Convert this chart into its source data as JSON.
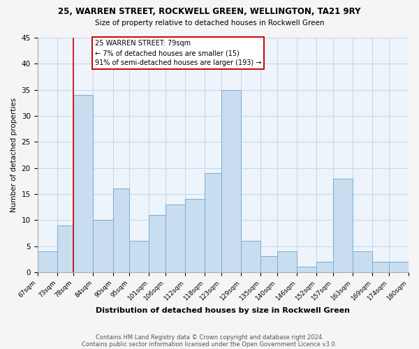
{
  "title1": "25, WARREN STREET, ROCKWELL GREEN, WELLINGTON, TA21 9RY",
  "title2": "Size of property relative to detached houses in Rockwell Green",
  "xlabel": "Distribution of detached houses by size in Rockwell Green",
  "ylabel": "Number of detached properties",
  "bin_edges": [
    67,
    73,
    78,
    84,
    90,
    95,
    101,
    106,
    112,
    118,
    123,
    129,
    135,
    140,
    146,
    152,
    157,
    163,
    169,
    174,
    180
  ],
  "bin_counts": [
    4,
    9,
    34,
    10,
    16,
    6,
    11,
    13,
    14,
    19,
    35,
    6,
    3,
    4,
    1,
    2,
    18,
    4,
    2,
    2
  ],
  "tick_labels": [
    "67sqm",
    "73sqm",
    "78sqm",
    "84sqm",
    "90sqm",
    "95sqm",
    "101sqm",
    "106sqm",
    "112sqm",
    "118sqm",
    "123sqm",
    "129sqm",
    "135sqm",
    "140sqm",
    "146sqm",
    "152sqm",
    "157sqm",
    "163sqm",
    "169sqm",
    "174sqm",
    "180sqm"
  ],
  "bar_color": "#c8ddef",
  "bar_edge_color": "#7aadd4",
  "vline_x": 78,
  "vline_color": "#cc0000",
  "annotation_title": "25 WARREN STREET: 79sqm",
  "annotation_line1": "← 7% of detached houses are smaller (15)",
  "annotation_line2": "91% of semi-detached houses are larger (193) →",
  "annotation_box_color": "#ffffff",
  "annotation_edge_color": "#cc0000",
  "ylim": [
    0,
    45
  ],
  "yticks": [
    0,
    5,
    10,
    15,
    20,
    25,
    30,
    35,
    40,
    45
  ],
  "footer1": "Contains HM Land Registry data © Crown copyright and database right 2024.",
  "footer2": "Contains public sector information licensed under the Open Government Licence v3.0.",
  "bg_color": "#f5f5f5",
  "plot_bg_color": "#eef4fb",
  "grid_color": "#c8d8e8"
}
